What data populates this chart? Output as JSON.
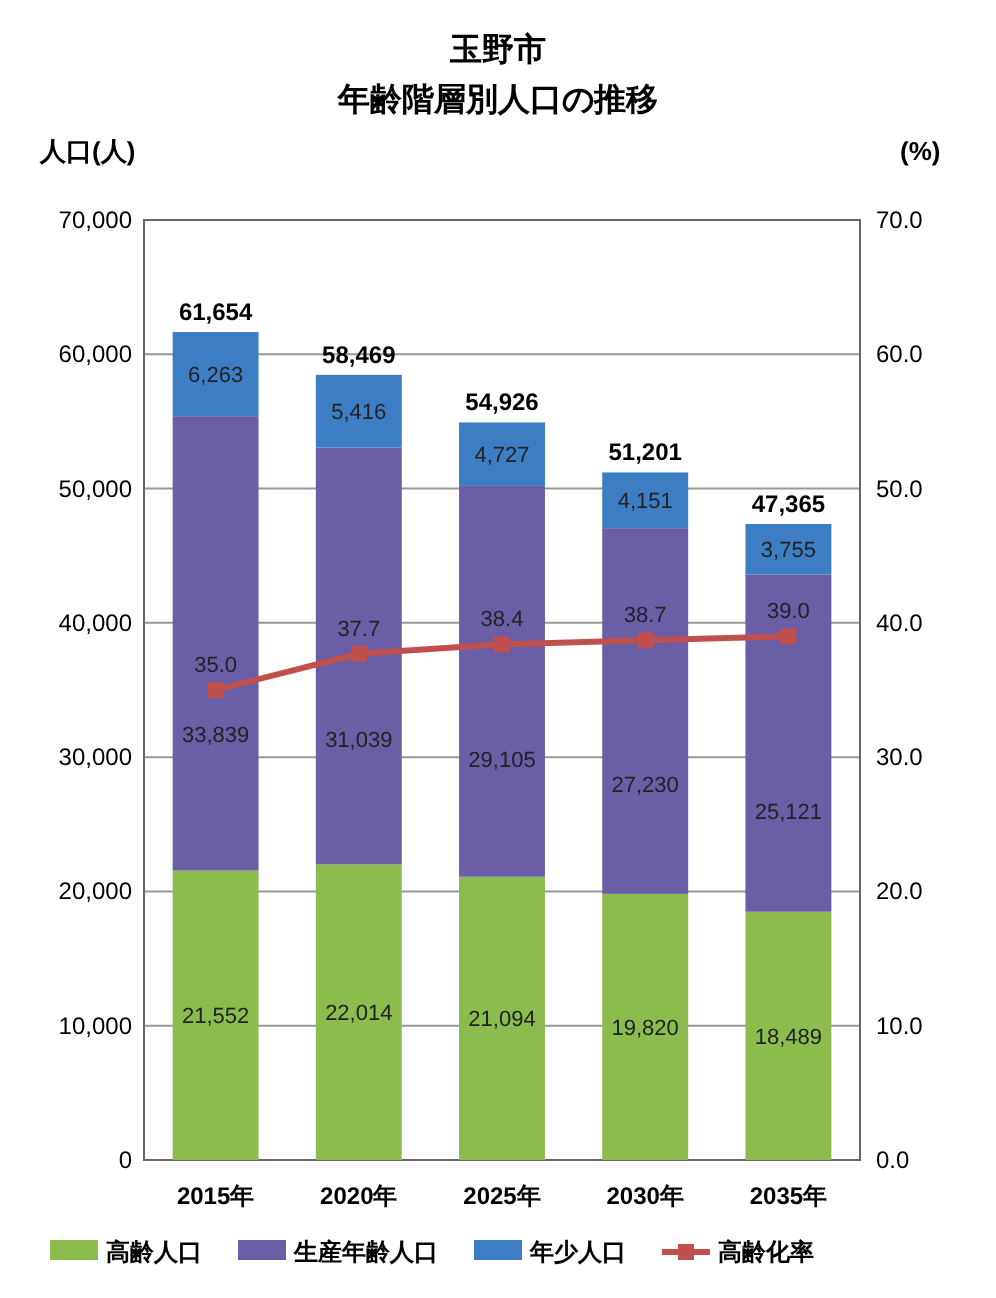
{
  "chart_data": {
    "type": "bar",
    "title": "玉野市",
    "subtitle": "年齢階層別人口の推移",
    "ylabel": "人口(人)",
    "y2label": "(%)",
    "categories": [
      "2015年",
      "2020年",
      "2025年",
      "2030年",
      "2035年"
    ],
    "stacked": true,
    "series": [
      {
        "name": "高齢人口",
        "color": "#8cbb4e",
        "values": [
          21552,
          22014,
          21094,
          19820,
          18489
        ],
        "value_labels": [
          "21,552",
          "22,014",
          "21,094",
          "19,820",
          "18,489"
        ]
      },
      {
        "name": "生産年齢人口",
        "color": "#6a5ea6",
        "values": [
          33839,
          31039,
          29105,
          27230,
          25121
        ],
        "value_labels": [
          "33,839",
          "31,039",
          "29,105",
          "27,230",
          "25,121"
        ]
      },
      {
        "name": "年少人口",
        "color": "#3d7dc4",
        "values": [
          6263,
          5416,
          4727,
          4151,
          3755
        ],
        "value_labels": [
          "6,263",
          "5,416",
          "4,727",
          "4,151",
          "3,755"
        ]
      },
      {
        "name": "高齢化率",
        "type": "line",
        "axis": "y2",
        "color": "#c0504d",
        "marker": "square",
        "values": [
          35.0,
          37.7,
          38.4,
          38.7,
          39.0
        ],
        "value_labels": [
          "35.0",
          "37.7",
          "38.4",
          "38.7",
          "39.0"
        ]
      }
    ],
    "totals": [
      "61,654",
      "58,469",
      "54,926",
      "51,201",
      "47,365"
    ],
    "ylim": [
      0,
      70000
    ],
    "yticks": [
      0,
      {
        "value": 10000,
        "label": "10,000"
      },
      {
        "value": 20000,
        "label": "20,000"
      },
      {
        "value": 30000,
        "label": "30,000"
      },
      {
        "value": 40000,
        "label": "40,000"
      },
      {
        "value": 50000,
        "label": "50,000"
      },
      {
        "value": 60000,
        "label": "60,000"
      },
      {
        "value": 70000,
        "label": "70,000"
      }
    ],
    "y2lim": [
      0,
      70
    ],
    "y2ticks": [
      {
        "value": 0,
        "label": "0.0"
      },
      {
        "value": 10,
        "label": "10.0"
      },
      {
        "value": 20,
        "label": "20.0"
      },
      {
        "value": 30,
        "label": "30.0"
      },
      {
        "value": 40,
        "label": "40.0"
      },
      {
        "value": 50,
        "label": "50.0"
      },
      {
        "value": 60,
        "label": "60.0"
      },
      {
        "value": 70,
        "label": "70.0"
      }
    ],
    "grid": "y",
    "legend": "bottom"
  }
}
